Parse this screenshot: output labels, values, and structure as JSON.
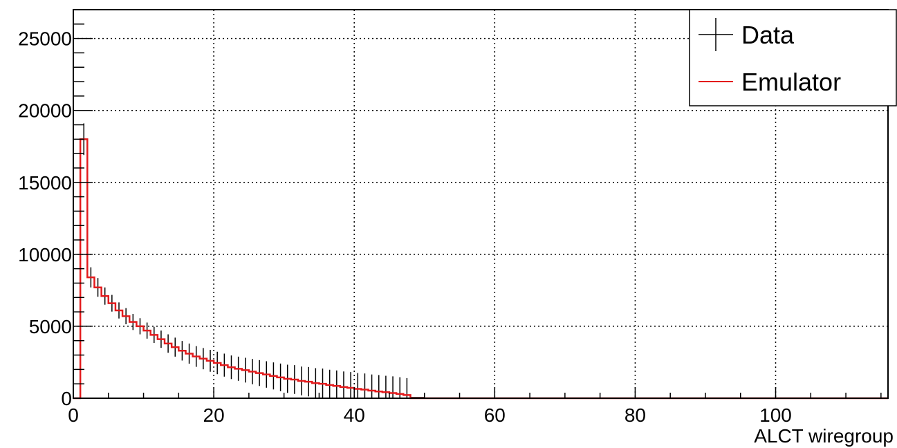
{
  "chart_data": {
    "type": "histogram",
    "title": "",
    "xlabel": "ALCT wiregroup",
    "ylabel": "",
    "xlim": [
      0,
      116
    ],
    "ylim": [
      0,
      27000
    ],
    "x_ticks": [
      0,
      20,
      40,
      60,
      80,
      100
    ],
    "x_tick_labels": [
      "0",
      "20",
      "40",
      "60",
      "80",
      "100"
    ],
    "y_ticks": [
      0,
      5000,
      10000,
      15000,
      20000,
      25000
    ],
    "y_tick_labels": [
      "0",
      "5000",
      "10000",
      "15000",
      "20000",
      "25000"
    ],
    "grid": true,
    "legend_position": "top-right",
    "bin_width": 1,
    "series": [
      {
        "name": "Data",
        "style": "error-bars",
        "color": "#000000",
        "values": [
          0,
          18000,
          8400,
          7700,
          7100,
          6600,
          6100,
          5700,
          5300,
          5000,
          4700,
          4400,
          4100,
          3800,
          3550,
          3300,
          3100,
          2900,
          2750,
          2600,
          2450,
          2300,
          2150,
          2050,
          1950,
          1850,
          1750,
          1650,
          1550,
          1450,
          1350,
          1300,
          1200,
          1150,
          1050,
          1000,
          920,
          850,
          780,
          720,
          650,
          600,
          530,
          470,
          420,
          360,
          300,
          220,
          0
        ],
        "errors": [
          0,
          1100,
          700,
          650,
          600,
          580,
          560,
          560,
          560,
          560,
          560,
          560,
          600,
          640,
          660,
          680,
          700,
          720,
          740,
          760,
          780,
          800,
          820,
          840,
          860,
          880,
          900,
          920,
          940,
          960,
          980,
          1000,
          1000,
          1020,
          1040,
          1060,
          1060,
          1080,
          1080,
          1100,
          1100,
          1120,
          1120,
          1140,
          1140,
          1160,
          1160,
          1180,
          0
        ]
      },
      {
        "name": "Emulator",
        "style": "step",
        "color": "#e31a1c",
        "values": [
          0,
          18000,
          8400,
          7700,
          7100,
          6600,
          6100,
          5700,
          5300,
          5000,
          4700,
          4400,
          4100,
          3800,
          3550,
          3300,
          3100,
          2900,
          2750,
          2600,
          2450,
          2300,
          2150,
          2050,
          1950,
          1850,
          1750,
          1650,
          1550,
          1450,
          1350,
          1300,
          1200,
          1150,
          1050,
          1000,
          920,
          850,
          780,
          720,
          650,
          600,
          530,
          470,
          420,
          360,
          300,
          220,
          0
        ]
      }
    ]
  }
}
